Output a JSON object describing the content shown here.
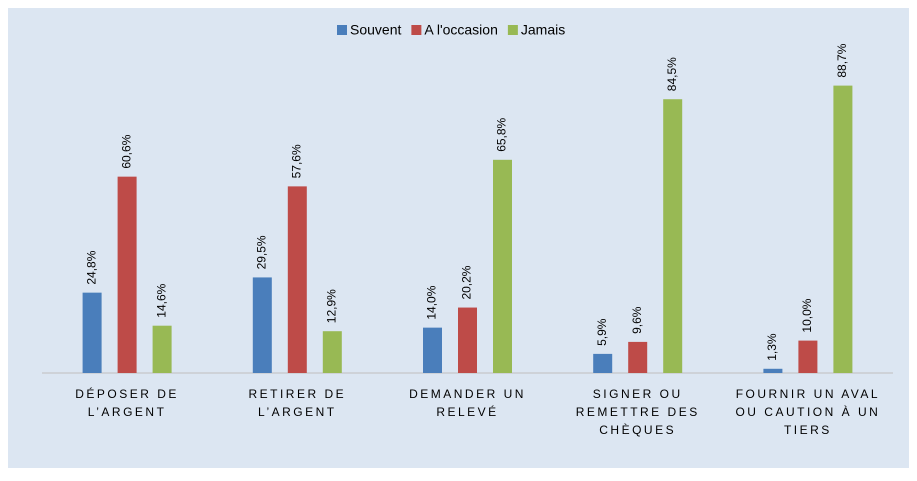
{
  "chart_data": {
    "type": "bar",
    "categories": [
      [
        "DÉPOSER DE",
        "L’ARGENT"
      ],
      [
        "RETIRER DE",
        "L’ARGENT"
      ],
      [
        "DEMANDER UN",
        "RELEVÉ"
      ],
      [
        "SIGNER OU",
        "REMETTRE DES",
        "CHÈQUES"
      ],
      [
        "FOURNIR UN AVAL",
        "OU CAUTION À UN",
        "TIERS"
      ]
    ],
    "series": [
      {
        "name": "Souvent",
        "color": "#4a7ebb",
        "values": [
          24.8,
          29.5,
          14.0,
          5.9,
          1.3
        ],
        "value_labels": [
          "24,8%",
          "29,5%",
          "14,0%",
          "5,9%",
          "1,3%"
        ]
      },
      {
        "name": "A l'occasion",
        "color": "#be4b48",
        "values": [
          60.6,
          57.6,
          20.2,
          9.6,
          10.0
        ],
        "value_labels": [
          "60,6%",
          "57,6%",
          "20,2%",
          "9,6%",
          "10,0%"
        ]
      },
      {
        "name": "Jamais",
        "color": "#98b954",
        "values": [
          14.6,
          12.9,
          65.8,
          84.5,
          88.7
        ],
        "value_labels": [
          "14,6%",
          "12,9%",
          "65,8%",
          "84,5%",
          "88,7%"
        ]
      }
    ],
    "ylim": [
      0,
      100
    ],
    "legend": "top"
  }
}
